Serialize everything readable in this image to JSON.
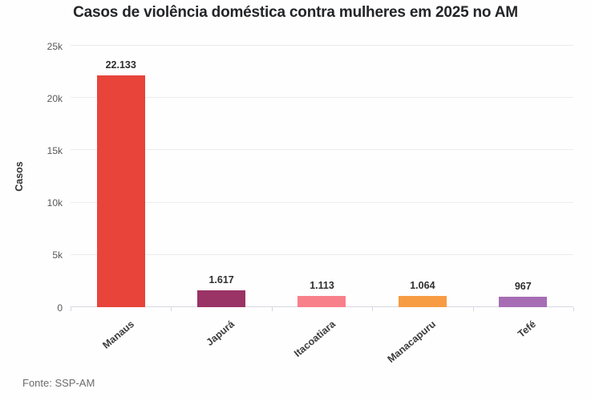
{
  "chart_data": {
    "type": "bar",
    "title": "Casos de violência doméstica contra mulheres em 2025 no AM",
    "categories": [
      "Manaus",
      "Japurá",
      "Itacoatiara",
      "Manacapuru",
      "Tefé"
    ],
    "values": [
      22133,
      1617,
      1113,
      1064,
      967
    ],
    "value_labels": [
      "22.133",
      "1.617",
      "1.113",
      "1.064",
      "967"
    ],
    "bar_colors": [
      "#e8443a",
      "#9a3366",
      "#f8808a",
      "#f89c44",
      "#a66db4"
    ],
    "xlabel": "",
    "ylabel": "Casos",
    "ylim": [
      0,
      25000
    ],
    "yticks": [
      "0",
      "5k",
      "10k",
      "15k",
      "20k",
      "25k"
    ],
    "ytick_values": [
      0,
      5000,
      10000,
      15000,
      20000,
      25000
    ],
    "grid": true,
    "legend": "none",
    "source": "Fonte: SSP-AM"
  },
  "colors": {
    "background": "#fefefe",
    "gridline": "#ececec",
    "axis_line": "#d9d6e2",
    "title_text": "#232527",
    "tick_text": "#585858",
    "label_text": "#3b3b3b",
    "source_text": "#6b6b6b"
  }
}
